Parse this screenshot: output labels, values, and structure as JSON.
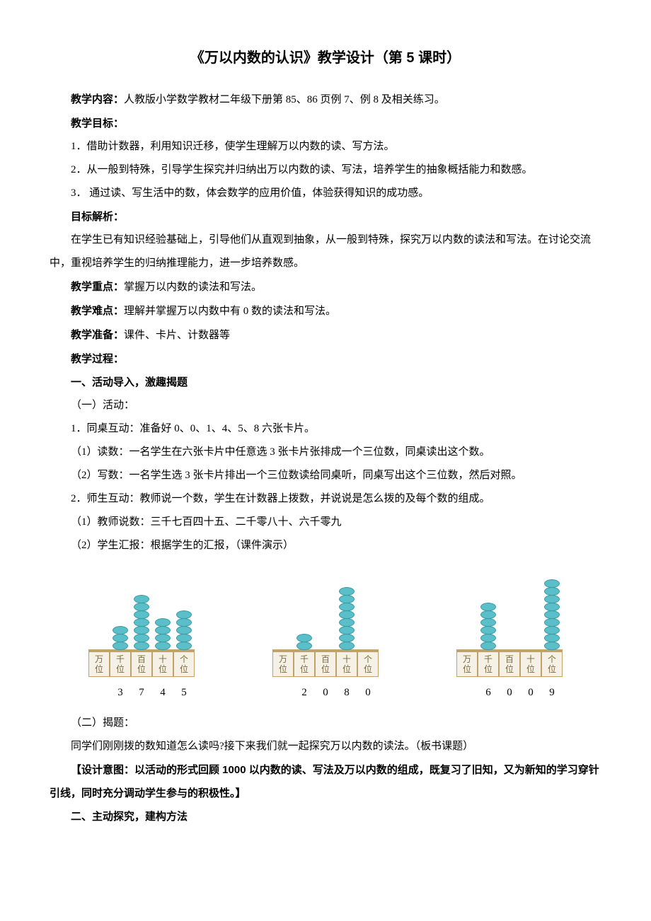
{
  "title": "《万以内数的认识》教学设计（第 5 课时）",
  "p_content_label": "教学内容：",
  "p_content_text": "人教版小学数学教材二年级下册第 85、86 页例 7、例 8 及相关练习。",
  "goals_label": "教学目标：",
  "goal1": "1．借助计数器，利用知识迁移，使学生理解万以内数的读、写方法。",
  "goal2": "2．从一般到特殊，引导学生探究并归纳出万以内数的读、写法，培养学生的抽象概括能力和数感。",
  "goal3": "3． 通过读、写生活中的数，体会数学的应用价值，体验获得知识的成功感。",
  "analysis_label": "目标解析：",
  "analysis_text": "在学生已有知识经验基础上，引导他们从直观到抽象，从一般到特殊，探究万以内数的读法和写法。在讨论交流中，重视培养学生的归纳推理能力，进一步培养数感。",
  "focus_label": "教学重点：",
  "focus_text": "掌握万以内数的读法和写法。",
  "diff_label": "教学难点：",
  "diff_text": "理解并掌握万以内数中有 0 数的读法和写法。",
  "prep_label": "教学准备：",
  "prep_text": "课件、卡片、计数器等",
  "process_label": "教学过程：",
  "sec1": "一、活动导入，激趣揭题",
  "sec1_1": "（一）活动：",
  "sec1_1_1": "1．同桌互动：准备好 0、0、1、4、5、8 六张卡片。",
  "sec1_1_1a": "（1）读数：一名学生在六张卡片中任意选 3 张卡片张排成一个三位数，同桌读出这个数。",
  "sec1_1_1b": "（2）写数：一名学生选 3 张卡片排出一个三位数读给同桌听，同桌写出这个三位数，然后对照。",
  "sec1_1_2": "2．师生互动：教师说一个数，学生在计数器上拨数，并说说是怎么拨的及每个数的组成。",
  "sec1_1_2a": "（1）教师说数：三千七百四十五、二千零八十、六千零九",
  "sec1_1_2b": "（2）学生汇报：根据学生的汇报，（课件演示）",
  "abacus": {
    "place_labels": [
      "万位",
      "千位",
      "百位",
      "十位",
      "个位"
    ],
    "bead_color": "#5bbfc9",
    "items": [
      {
        "beads": [
          0,
          3,
          7,
          4,
          5
        ],
        "digits": [
          "",
          "3",
          "7",
          "4",
          "5"
        ]
      },
      {
        "beads": [
          0,
          2,
          0,
          8,
          0
        ],
        "digits": [
          "",
          "2",
          "0",
          "8",
          "0"
        ]
      },
      {
        "beads": [
          0,
          6,
          0,
          0,
          9
        ],
        "digits": [
          "",
          "6",
          "0",
          "0",
          "9"
        ]
      }
    ]
  },
  "sec1_2": "（二）揭题：",
  "sec1_2_text": "同学们刚刚拨的数知道怎么读吗?接下来我们就一起探究万以内数的读法。（板书课题）",
  "design_label": "【设计意图：",
  "design_text": "以活动的形式回顾 1000 以内数的读、写法及万以内数的组成，既复习了旧知，又为新知的学习穿针引线，同时充分调动学生参与的积极性。】",
  "sec2": "二、主动探究，建构方法"
}
